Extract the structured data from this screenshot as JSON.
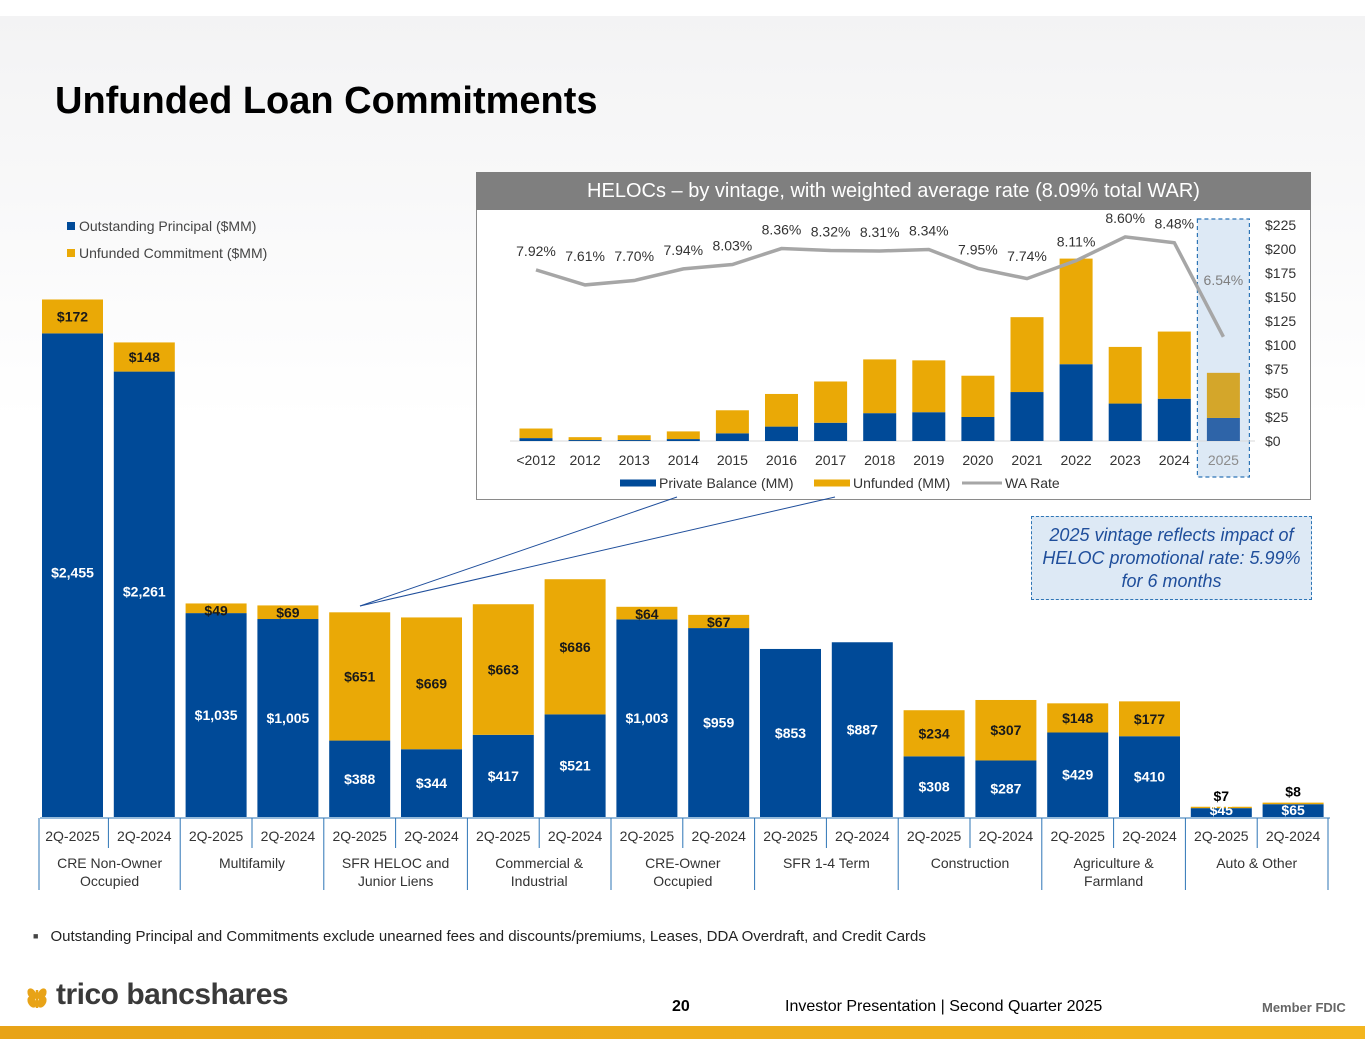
{
  "title": "Unfunded Loan Commitments",
  "colors": {
    "outstanding": "#004a98",
    "unfunded": "#eaa906",
    "wa_rate": "#a6a6a6",
    "highlight_fill": "#dde9f5",
    "highlight_border": "#2e75b6"
  },
  "legend": {
    "outstanding": "Outstanding Principal ($MM)",
    "unfunded": "Unfunded Commitment ($MM)"
  },
  "inset": {
    "title": "HELOCs – by vintage, with weighted average rate (8.09% total WAR)"
  },
  "callout": "2025 vintage reflects impact of HELOC promotional rate: 5.99% for 6 months",
  "footnote": "Outstanding Principal and Commitments exclude unearned fees and discounts/premiums, Leases, DDA Overdraft, and Credit Cards",
  "footer": {
    "logo": "trico bancshares",
    "page_number": "20",
    "text": "Investor Presentation  |  Second Quarter 2025",
    "member": "Member FDIC"
  },
  "chart_data": [
    {
      "type": "bar",
      "stacked": true,
      "categories": [
        "CRE Non-Owner Occupied",
        "Multifamily",
        "SFR HELOC and Junior Liens",
        "Commercial & Industrial",
        "CRE-Owner Occupied",
        "SFR 1-4 Term",
        "Construction",
        "Agriculture & Farmland",
        "Auto & Other"
      ],
      "periods": [
        "2Q-2025",
        "2Q-2024"
      ],
      "series": [
        {
          "name": "Outstanding Principal ($MM)",
          "values": [
            [
              2455,
              2261
            ],
            [
              1035,
              1005
            ],
            [
              388,
              344
            ],
            [
              417,
              521
            ],
            [
              1003,
              959
            ],
            [
              853,
              887
            ],
            [
              308,
              287
            ],
            [
              429,
              410
            ],
            [
              45,
              65
            ]
          ],
          "labels": [
            [
              "$2,455",
              "$2,261"
            ],
            [
              "$1,035",
              "$1,005"
            ],
            [
              "$388",
              "$344"
            ],
            [
              "$417",
              "$521"
            ],
            [
              "$1,003",
              "$959"
            ],
            [
              "$853",
              "$887"
            ],
            [
              "$308",
              "$287"
            ],
            [
              "$429",
              "$410"
            ],
            [
              "$45",
              "$65"
            ]
          ]
        },
        {
          "name": "Unfunded Commitment ($MM)",
          "values": [
            [
              172,
              148
            ],
            [
              49,
              69
            ],
            [
              651,
              669
            ],
            [
              663,
              686
            ],
            [
              64,
              67
            ],
            [
              0,
              0
            ],
            [
              234,
              307
            ],
            [
              148,
              177
            ],
            [
              7,
              8
            ]
          ],
          "labels": [
            [
              "$172",
              "$148"
            ],
            [
              "$49",
              "$69"
            ],
            [
              "$651",
              "$669"
            ],
            [
              "$663",
              "$686"
            ],
            [
              "$64",
              "$67"
            ],
            [
              "",
              ""
            ],
            [
              "$234",
              "$307"
            ],
            [
              "$148",
              "$177"
            ],
            [
              "$7",
              "$8"
            ]
          ]
        }
      ],
      "legend_position": "top-left"
    },
    {
      "type": "bar",
      "stacked": true,
      "title": "HELOCs – by vintage, with weighted average rate (8.09% total WAR)",
      "categories": [
        "<2012",
        "2012",
        "2013",
        "2014",
        "2015",
        "2016",
        "2017",
        "2018",
        "2019",
        "2020",
        "2021",
        "2022",
        "2023",
        "2024",
        "2025"
      ],
      "series": [
        {
          "name": "Private Balance (MM)",
          "values": [
            3,
            1,
            1,
            2,
            8,
            15,
            19,
            29,
            30,
            25,
            51,
            80,
            39,
            44,
            24
          ]
        },
        {
          "name": "Unfunded (MM)",
          "values": [
            10,
            3,
            5,
            8,
            24,
            34,
            43,
            56,
            54,
            43,
            78,
            110,
            59,
            70,
            47
          ]
        },
        {
          "name": "WA Rate",
          "type": "line",
          "values": [
            7.92,
            7.61,
            7.7,
            7.94,
            8.03,
            8.36,
            8.32,
            8.31,
            8.34,
            7.95,
            7.74,
            8.11,
            8.6,
            8.48,
            6.54
          ],
          "labels": [
            "7.92%",
            "7.61%",
            "7.70%",
            "7.94%",
            "8.03%",
            "8.36%",
            "8.32%",
            "8.31%",
            "8.34%",
            "7.95%",
            "7.74%",
            "8.11%",
            "8.60%",
            "8.48%",
            "6.54%"
          ]
        }
      ],
      "y_axis": {
        "ticks": [
          "$0",
          "$25",
          "$50",
          "$75",
          "$100",
          "$125",
          "$150",
          "$175",
          "$200",
          "$225"
        ],
        "range": [
          0,
          225
        ]
      },
      "highlight_category": "2025",
      "legend_position": "bottom"
    }
  ]
}
